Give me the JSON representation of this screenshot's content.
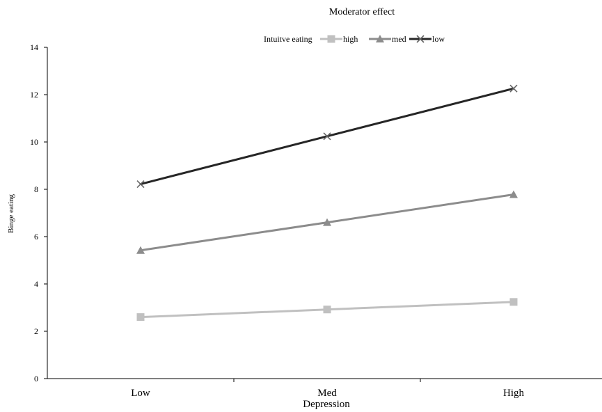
{
  "chart_data": {
    "type": "line",
    "title": "Moderator effect",
    "legend_title": "Intuitve eating",
    "legend_position": "top",
    "xlabel": "Depression",
    "ylabel": "Binge eating",
    "categories": [
      "Low",
      "Med",
      "High"
    ],
    "ylim": [
      0,
      14
    ],
    "yticks": [
      0,
      2,
      4,
      6,
      8,
      10,
      12,
      14
    ],
    "grid": false,
    "series": [
      {
        "name": "high",
        "values": [
          2.6,
          2.92,
          3.24
        ],
        "color": "#c0c0c0",
        "marker": "square"
      },
      {
        "name": "med",
        "values": [
          5.42,
          6.6,
          7.78
        ],
        "color": "#8c8c8c",
        "marker": "triangle"
      },
      {
        "name": "low",
        "values": [
          8.22,
          10.24,
          12.26
        ],
        "color": "#262626",
        "marker": "x"
      }
    ]
  }
}
